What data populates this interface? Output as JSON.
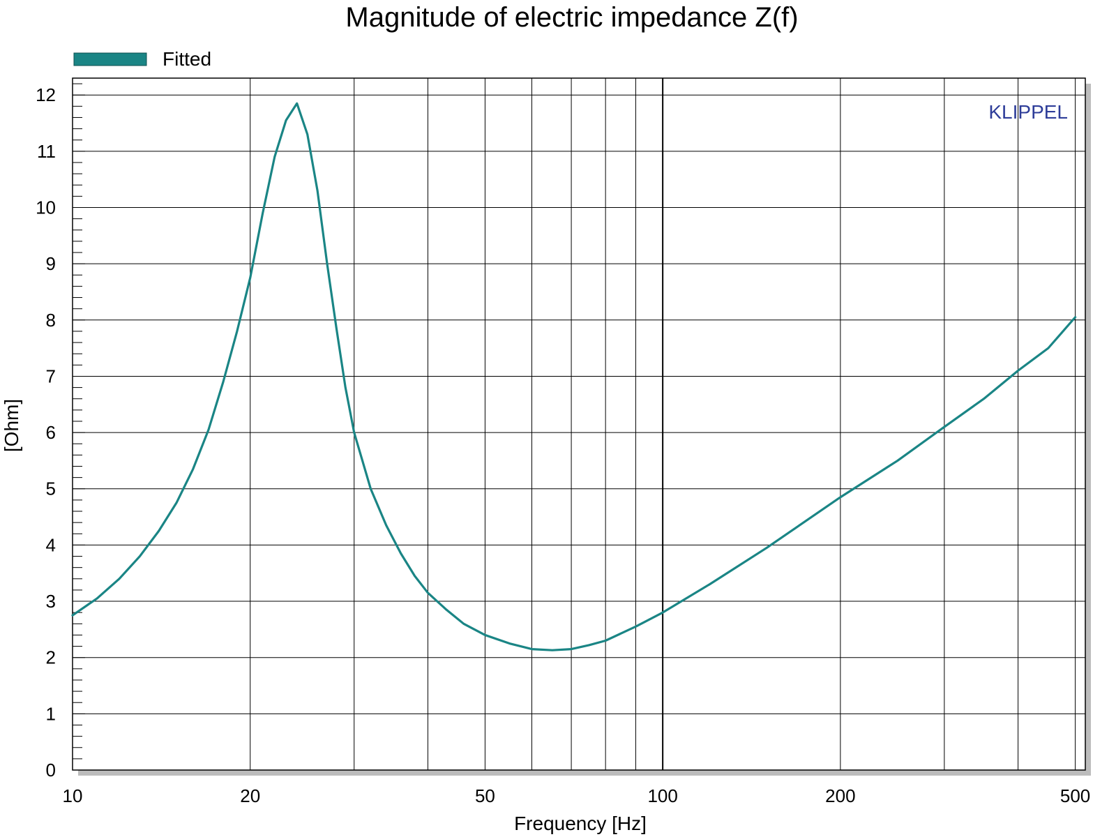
{
  "chart_data": {
    "type": "line",
    "title": "Magnitude of electric impedance Z(f)",
    "xlabel": "Frequency [Hz]",
    "ylabel": "[Ohm]",
    "xscale": "log",
    "xlim": [
      10,
      520
    ],
    "ylim": [
      0,
      12.3
    ],
    "x_ticks": [
      10,
      20,
      50,
      100,
      200,
      500
    ],
    "y_ticks": [
      0,
      1,
      2,
      3,
      4,
      5,
      6,
      7,
      8,
      9,
      10,
      11,
      12
    ],
    "grid": true,
    "legend": {
      "position": "top-left",
      "entries": [
        "Fitted"
      ]
    },
    "brand_label": "KLIPPEL",
    "colors": {
      "series": "#1a8585",
      "brand": "#2e3d99",
      "grid": "#000000"
    },
    "series": [
      {
        "name": "Fitted",
        "x": [
          10,
          11,
          12,
          13,
          14,
          15,
          16,
          17,
          18,
          19,
          20,
          21,
          22,
          23,
          24,
          25,
          26,
          27,
          28,
          29,
          30,
          32,
          34,
          36,
          38,
          40,
          43,
          46,
          50,
          55,
          60,
          65,
          70,
          75,
          80,
          90,
          100,
          120,
          150,
          200,
          250,
          300,
          350,
          400,
          450,
          500
        ],
        "values": [
          2.75,
          3.05,
          3.4,
          3.8,
          4.25,
          4.75,
          5.35,
          6.05,
          6.9,
          7.8,
          8.75,
          9.9,
          10.9,
          11.55,
          11.85,
          11.3,
          10.3,
          9.0,
          7.85,
          6.8,
          6.0,
          5.0,
          4.35,
          3.85,
          3.45,
          3.15,
          2.85,
          2.6,
          2.4,
          2.25,
          2.15,
          2.13,
          2.15,
          2.22,
          2.3,
          2.55,
          2.8,
          3.3,
          3.95,
          4.85,
          5.5,
          6.1,
          6.6,
          7.1,
          7.5,
          8.05
        ]
      }
    ]
  }
}
